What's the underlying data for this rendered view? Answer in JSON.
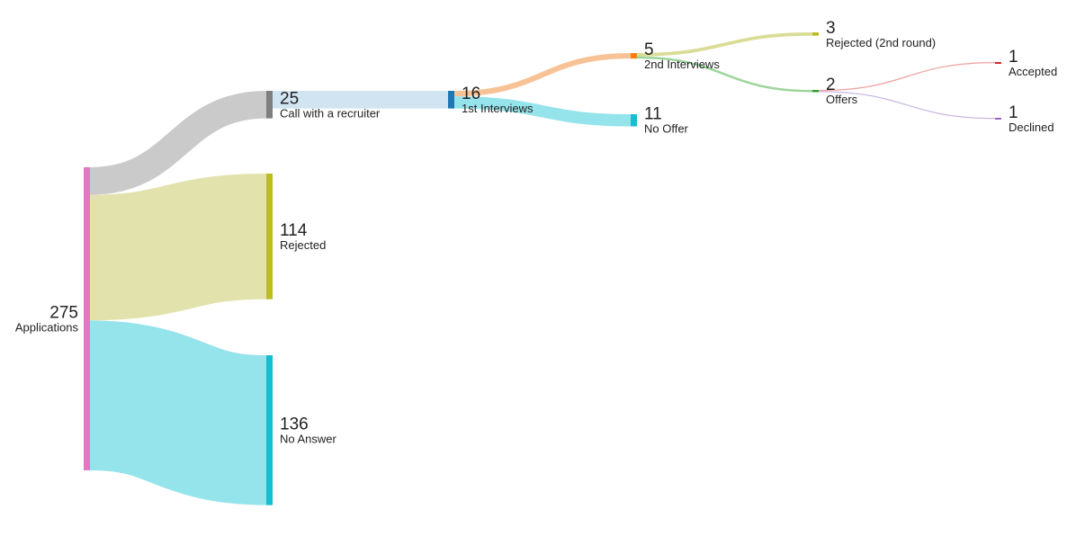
{
  "chart_data": {
    "type": "sankey",
    "unit": "",
    "nodes": [
      {
        "id": "applications",
        "label": "Applications",
        "value": 275,
        "color": "#e377c2"
      },
      {
        "id": "recruiter",
        "label": "Call with a recruiter",
        "value": 25,
        "color": "#7f7f7f"
      },
      {
        "id": "rejected",
        "label": "Rejected",
        "value": 114,
        "color": "#bcbd22"
      },
      {
        "id": "no_answer",
        "label": "No Answer",
        "value": 136,
        "color": "#17becf"
      },
      {
        "id": "interviews1",
        "label": "1st Interviews",
        "value": 16,
        "color": "#1f77b4"
      },
      {
        "id": "interviews2",
        "label": "2nd Interviews",
        "value": 5,
        "color": "#ff7f0e"
      },
      {
        "id": "no_offer",
        "label": "No Offer",
        "value": 11,
        "color": "#17becf"
      },
      {
        "id": "rejected2",
        "label": "Rejected (2nd round)",
        "value": 3,
        "color": "#bcbd22"
      },
      {
        "id": "offers",
        "label": "Offers",
        "value": 2,
        "color": "#2ca02c"
      },
      {
        "id": "accepted",
        "label": "Accepted",
        "value": 1,
        "color": "#d62728"
      },
      {
        "id": "declined",
        "label": "Declined",
        "value": 1,
        "color": "#9467bd"
      }
    ],
    "links": [
      {
        "source": "applications",
        "target": "recruiter",
        "value": 25,
        "color": "#c7c7c7"
      },
      {
        "source": "applications",
        "target": "rejected",
        "value": 114,
        "color": "#e0e2a8"
      },
      {
        "source": "applications",
        "target": "no_answer",
        "value": 136,
        "color": "#8fe2ea"
      },
      {
        "source": "recruiter",
        "target": "interviews1",
        "value": 16,
        "color": "#cfe3f1"
      },
      {
        "source": "interviews1",
        "target": "interviews2",
        "value": 5,
        "color": "#f8bf91"
      },
      {
        "source": "interviews1",
        "target": "no_offer",
        "value": 11,
        "color": "#8fe2ea"
      },
      {
        "source": "interviews2",
        "target": "rejected2",
        "value": 3,
        "color": "#d8da90"
      },
      {
        "source": "interviews2",
        "target": "offers",
        "value": 2,
        "color": "#98d396"
      },
      {
        "source": "offers",
        "target": "accepted",
        "value": 1,
        "color": "#ee9a9a"
      },
      {
        "source": "offers",
        "target": "declined",
        "value": 1,
        "color": "#c8b2df"
      }
    ]
  }
}
